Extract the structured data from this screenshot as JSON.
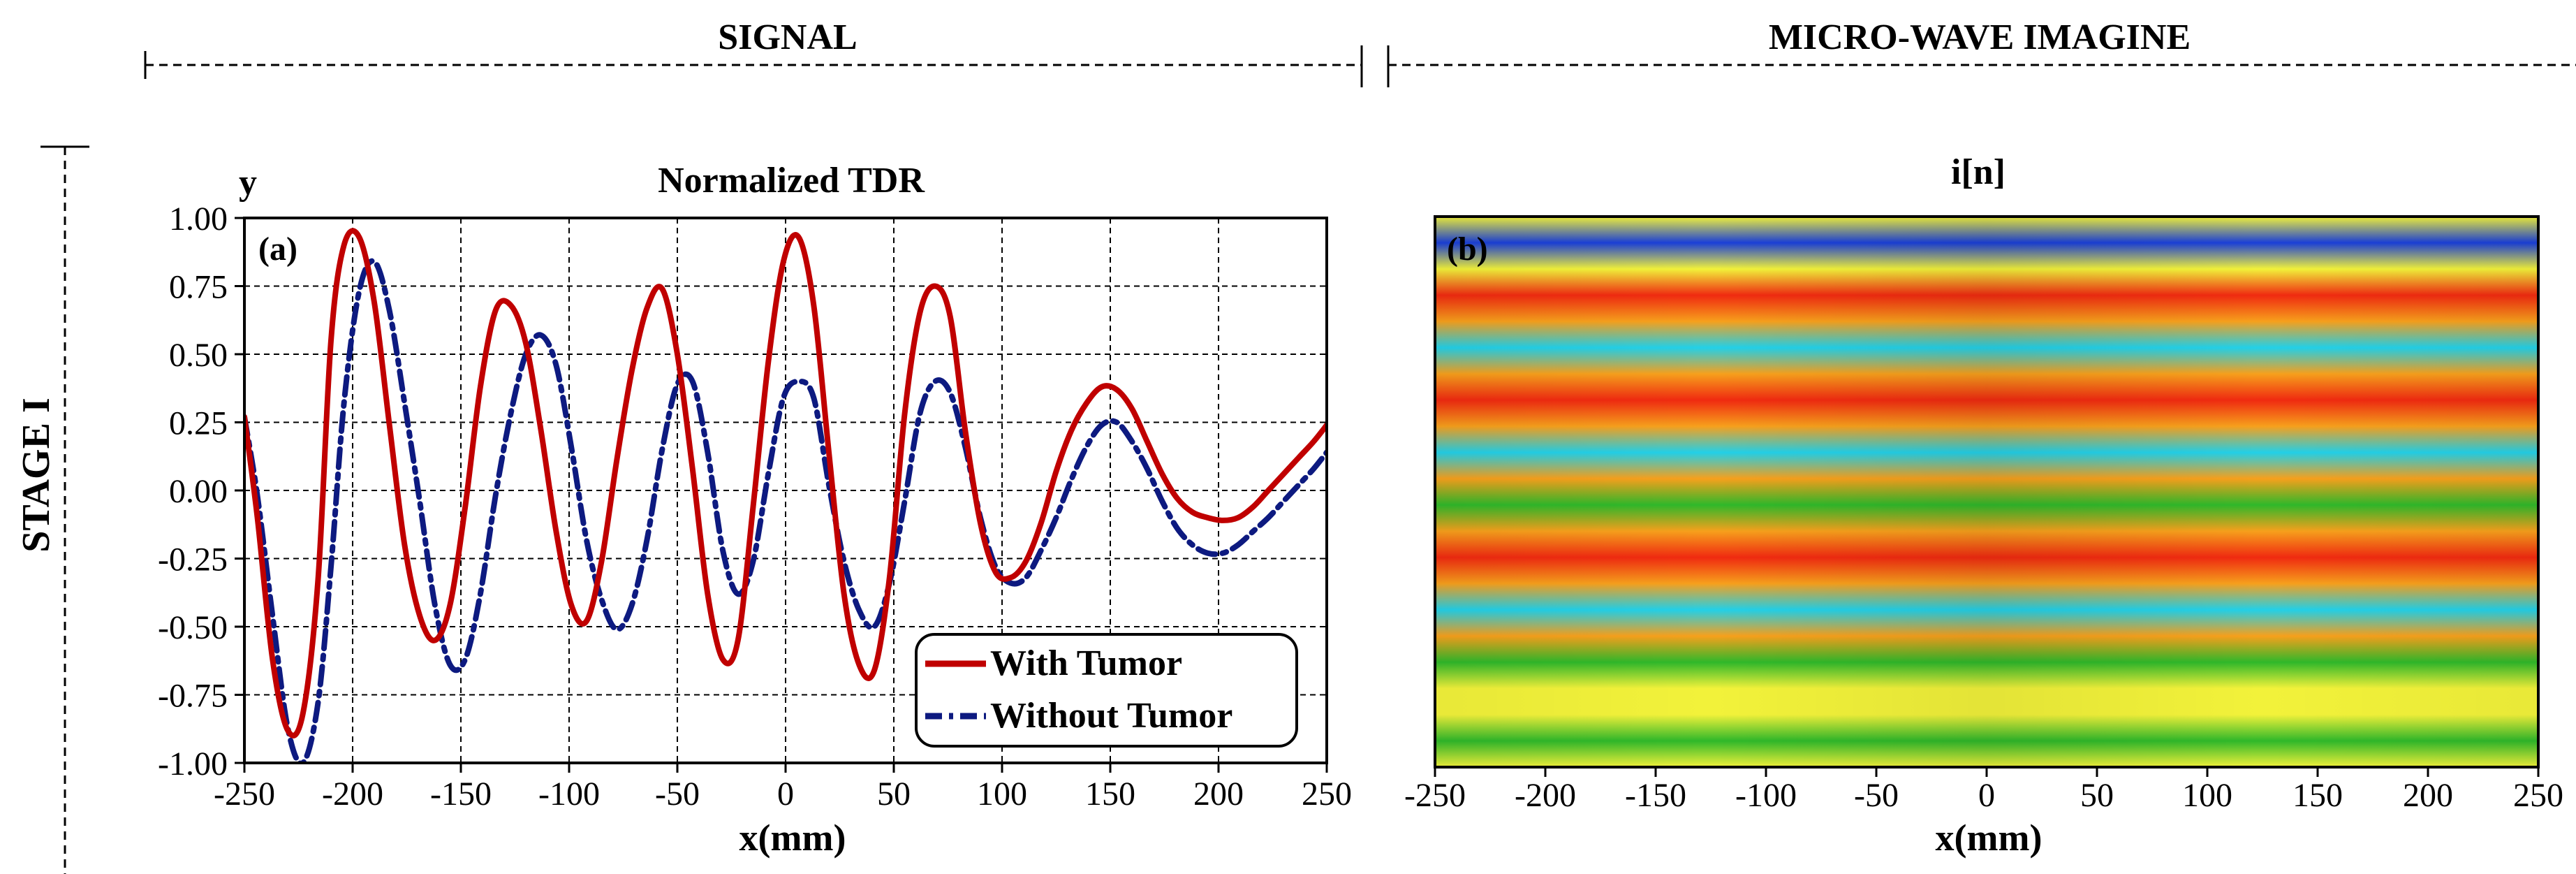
{
  "headers": {
    "signal": "SIGNAL",
    "imaging": "MICRO-WAVE IMAGINE",
    "stage": "STAGE I"
  },
  "chart_data": [
    {
      "type": "line",
      "title": "Normalized TDR",
      "panel_label": "(a)",
      "xlabel": "x(mm)",
      "ylabel": "y",
      "xlim": [
        -250,
        250
      ],
      "ylim": [
        -1.0,
        1.0
      ],
      "x_ticks": [
        "-250",
        "-200",
        "-150",
        "-100",
        "-50",
        "0",
        "50",
        "100",
        "150",
        "200",
        "250"
      ],
      "y_ticks": [
        "1.00",
        "0.75",
        "0.50",
        "0.25",
        "0.00",
        "-0.25",
        "-0.50",
        "-0.75",
        "-1.00"
      ],
      "grid": true,
      "legend_position": "bottom-right",
      "x": [
        -250,
        -244,
        -237,
        -230,
        -223,
        -216,
        -210,
        -204,
        -197,
        -190,
        -183,
        -176,
        -169,
        -162,
        -155,
        -148,
        -141,
        -134,
        -127,
        -120,
        -113,
        -106,
        -99,
        -92,
        -85,
        -78,
        -71,
        -64,
        -57,
        -50,
        -43,
        -36,
        -29,
        -22,
        -15,
        -8,
        -1,
        6,
        13,
        20,
        27,
        34,
        41,
        48,
        55,
        62,
        69,
        76,
        83,
        90,
        97,
        104,
        111,
        118,
        125,
        132,
        139,
        146,
        153,
        160,
        167,
        174,
        181,
        188,
        195,
        202,
        209,
        216,
        223,
        230,
        237,
        244,
        250
      ],
      "series": [
        {
          "name": "With Tumor",
          "color": "#c00000",
          "style": "solid",
          "values": [
            0.27,
            -0.1,
            -0.62,
            -0.88,
            -0.82,
            -0.33,
            0.55,
            0.9,
            0.93,
            0.69,
            0.24,
            -0.2,
            -0.46,
            -0.55,
            -0.42,
            -0.06,
            0.38,
            0.66,
            0.68,
            0.54,
            0.22,
            -0.15,
            -0.42,
            -0.48,
            -0.26,
            0.11,
            0.44,
            0.67,
            0.74,
            0.5,
            0.08,
            -0.38,
            -0.62,
            -0.55,
            -0.06,
            0.47,
            0.84,
            0.93,
            0.68,
            0.14,
            -0.38,
            -0.64,
            -0.66,
            -0.32,
            0.28,
            0.65,
            0.75,
            0.64,
            0.22,
            -0.12,
            -0.3,
            -0.32,
            -0.26,
            -0.12,
            0.07,
            0.22,
            0.32,
            0.38,
            0.37,
            0.3,
            0.18,
            0.06,
            -0.03,
            -0.08,
            -0.1,
            -0.11,
            -0.1,
            -0.06,
            0.0,
            0.06,
            0.12,
            0.18,
            0.24
          ]
        },
        {
          "name": "Without Tumor",
          "color": "#0d1a80",
          "style": "dashdot",
          "values": [
            0.27,
            -0.02,
            -0.46,
            -0.87,
            -1.0,
            -0.78,
            -0.28,
            0.32,
            0.73,
            0.84,
            0.66,
            0.32,
            -0.04,
            -0.42,
            -0.64,
            -0.62,
            -0.38,
            -0.02,
            0.28,
            0.5,
            0.57,
            0.46,
            0.16,
            -0.18,
            -0.4,
            -0.51,
            -0.42,
            -0.18,
            0.15,
            0.39,
            0.4,
            0.14,
            -0.22,
            -0.38,
            -0.26,
            0.06,
            0.34,
            0.4,
            0.34,
            0.02,
            -0.26,
            -0.44,
            -0.5,
            -0.34,
            -0.04,
            0.28,
            0.4,
            0.36,
            0.16,
            -0.1,
            -0.28,
            -0.34,
            -0.32,
            -0.22,
            -0.1,
            0.04,
            0.16,
            0.24,
            0.25,
            0.18,
            0.08,
            -0.04,
            -0.14,
            -0.2,
            -0.23,
            -0.23,
            -0.2,
            -0.15,
            -0.1,
            -0.04,
            0.02,
            0.08,
            0.14
          ]
        }
      ]
    },
    {
      "type": "heatmap",
      "title": "i[n]",
      "panel_label": "(b)",
      "xlabel": "x(mm)",
      "xlim": [
        -250,
        250
      ],
      "x_ticks": [
        "-250",
        "-200",
        "-150",
        "-100",
        "-50",
        "0",
        "50",
        "100",
        "150",
        "200",
        "250"
      ],
      "colormap": "jet",
      "bands_top_to_bottom": [
        "yellow",
        "blue",
        "yellow",
        "red",
        "orange",
        "cyan",
        "orange",
        "red",
        "orange",
        "cyan",
        "orange",
        "green",
        "orange",
        "red",
        "orange",
        "cyan",
        "orange",
        "green",
        "yellow",
        "yellow",
        "green",
        "yellow"
      ]
    }
  ]
}
